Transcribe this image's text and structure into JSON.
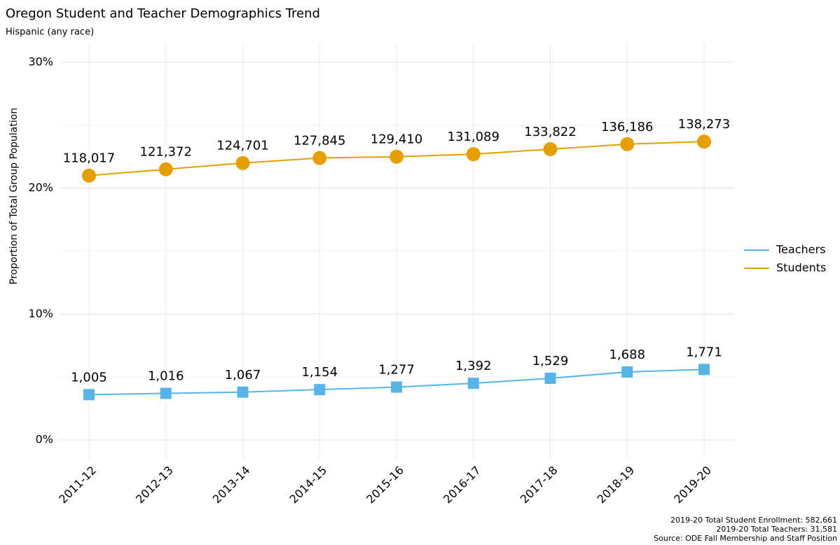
{
  "chart_data": {
    "type": "line",
    "title": "Oregon Student and Teacher Demographics Trend",
    "subtitle": "Hispanic (any race)",
    "y_label": "Proportion of Total Group Population",
    "categories": [
      "2011-12",
      "2012-13",
      "2013-14",
      "2014-15",
      "2015-16",
      "2016-17",
      "2017-18",
      "2018-19",
      "2019-20"
    ],
    "series": [
      {
        "name": "Teachers",
        "color": "#56B4E9",
        "marker": "square",
        "values": [
          3.6,
          3.7,
          3.8,
          4.0,
          4.2,
          4.5,
          4.9,
          5.4,
          5.6
        ],
        "point_labels": [
          "1,005",
          "1,016",
          "1,067",
          "1,154",
          "1,277",
          "1,392",
          "1,529",
          "1,688",
          "1,771"
        ]
      },
      {
        "name": "Students",
        "color": "#E69F00",
        "marker": "circle",
        "values": [
          21.0,
          21.5,
          22.0,
          22.4,
          22.5,
          22.7,
          23.1,
          23.5,
          23.7
        ],
        "point_labels": [
          "118,017",
          "121,372",
          "124,701",
          "127,845",
          "129,410",
          "131,089",
          "133,822",
          "136,186",
          "138,273"
        ]
      }
    ],
    "ylim": [
      -1.5,
      31.5
    ],
    "yticks": [
      {
        "value": 0,
        "label": "0%"
      },
      {
        "value": 10,
        "label": "10%"
      },
      {
        "value": 20,
        "label": "20%"
      },
      {
        "value": 30,
        "label": "30%"
      }
    ],
    "y_minor_ticks": [
      5,
      15,
      25
    ],
    "grid": true,
    "legend": "right",
    "footnotes": [
      "2019-20 Total Student Enrollment: 582,661",
      "2019-20 Total Teachers: 31,581",
      "Source: ODE Fall Membership and Staff Position"
    ]
  }
}
